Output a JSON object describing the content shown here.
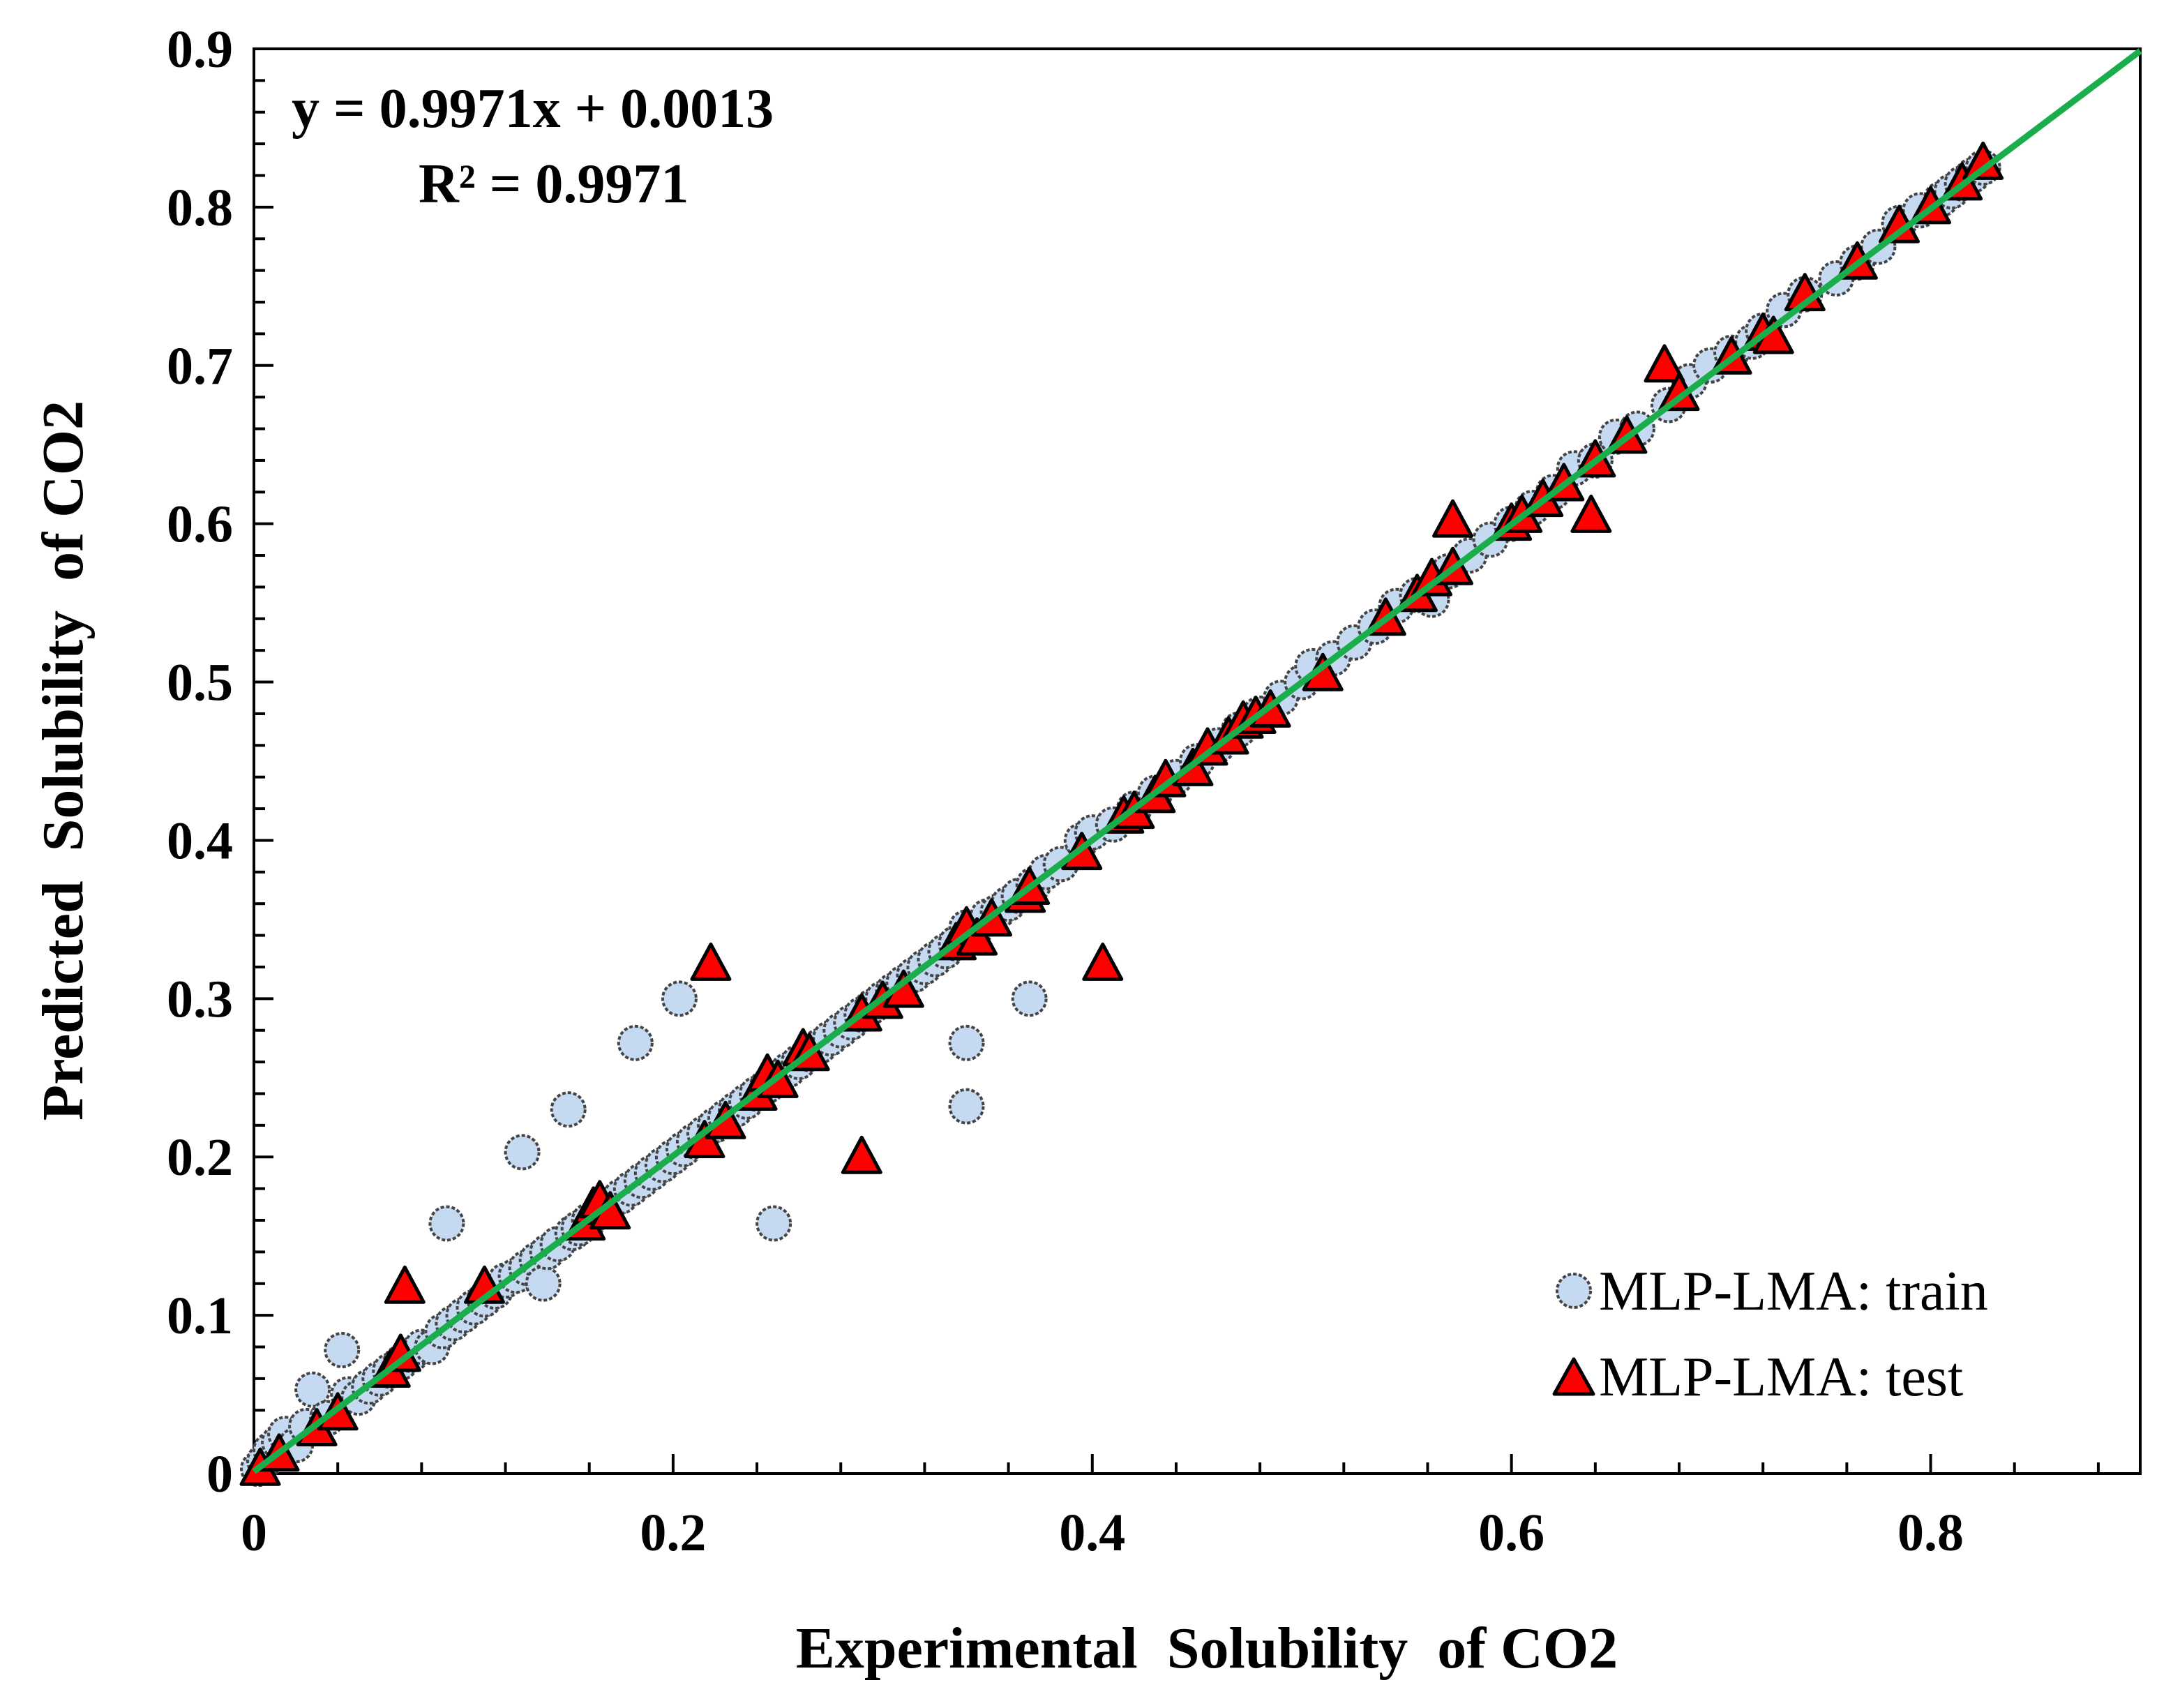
{
  "chart_data": {
    "type": "scatter",
    "xlabel": "Experimental  Solubility  of CO2",
    "ylabel": "Predicted  Solubility  of CO2",
    "xlim": [
      0,
      0.9
    ],
    "ylim": [
      0,
      0.9
    ],
    "x_ticks": [
      "0",
      "0.2",
      "0.4",
      "0.6",
      "0.8"
    ],
    "y_ticks": [
      "0",
      "0.1",
      "0.2",
      "0.3",
      "0.4",
      "0.5",
      "0.6",
      "0.7",
      "0.8",
      "0.9"
    ],
    "equation": "y = 0.9971x + 0.0013",
    "r_squared": "R² = 0.9971",
    "fit_line": {
      "slope": 0.9971,
      "intercept": 0.0013,
      "color": "#1aad4b"
    },
    "legend_position": "bottom-right",
    "series": [
      {
        "name": "MLP-LMA: train",
        "marker": "circle",
        "color": "#c5d9f1",
        "points": [
          [
            0.002,
            0.003
          ],
          [
            0.005,
            0.008
          ],
          [
            0.008,
            0.015
          ],
          [
            0.012,
            0.02
          ],
          [
            0.015,
            0.025
          ],
          [
            0.02,
            0.018
          ],
          [
            0.025,
            0.03
          ],
          [
            0.028,
            0.053
          ],
          [
            0.035,
            0.035
          ],
          [
            0.042,
            0.078
          ],
          [
            0.045,
            0.05
          ],
          [
            0.05,
            0.048
          ],
          [
            0.055,
            0.055
          ],
          [
            0.06,
            0.06
          ],
          [
            0.065,
            0.065
          ],
          [
            0.07,
            0.07
          ],
          [
            0.075,
            0.075
          ],
          [
            0.08,
            0.08
          ],
          [
            0.085,
            0.08
          ],
          [
            0.09,
            0.09
          ],
          [
            0.092,
            0.158
          ],
          [
            0.095,
            0.095
          ],
          [
            0.1,
            0.1
          ],
          [
            0.105,
            0.105
          ],
          [
            0.11,
            0.11
          ],
          [
            0.115,
            0.115
          ],
          [
            0.12,
            0.122
          ],
          [
            0.125,
            0.125
          ],
          [
            0.128,
            0.203
          ],
          [
            0.13,
            0.13
          ],
          [
            0.135,
            0.135
          ],
          [
            0.138,
            0.12
          ],
          [
            0.14,
            0.14
          ],
          [
            0.145,
            0.145
          ],
          [
            0.15,
            0.23
          ],
          [
            0.152,
            0.152
          ],
          [
            0.155,
            0.155
          ],
          [
            0.16,
            0.16
          ],
          [
            0.165,
            0.165
          ],
          [
            0.17,
            0.17
          ],
          [
            0.175,
            0.175
          ],
          [
            0.18,
            0.18
          ],
          [
            0.182,
            0.272
          ],
          [
            0.185,
            0.185
          ],
          [
            0.19,
            0.19
          ],
          [
            0.195,
            0.195
          ],
          [
            0.2,
            0.2
          ],
          [
            0.203,
            0.3
          ],
          [
            0.205,
            0.205
          ],
          [
            0.21,
            0.21
          ],
          [
            0.215,
            0.215
          ],
          [
            0.22,
            0.22
          ],
          [
            0.225,
            0.225
          ],
          [
            0.23,
            0.23
          ],
          [
            0.235,
            0.235
          ],
          [
            0.24,
            0.24
          ],
          [
            0.245,
            0.245
          ],
          [
            0.248,
            0.158
          ],
          [
            0.25,
            0.25
          ],
          [
            0.255,
            0.255
          ],
          [
            0.26,
            0.26
          ],
          [
            0.265,
            0.265
          ],
          [
            0.27,
            0.27
          ],
          [
            0.275,
            0.275
          ],
          [
            0.28,
            0.28
          ],
          [
            0.285,
            0.285
          ],
          [
            0.29,
            0.29
          ],
          [
            0.295,
            0.295
          ],
          [
            0.3,
            0.3
          ],
          [
            0.305,
            0.305
          ],
          [
            0.31,
            0.31
          ],
          [
            0.315,
            0.315
          ],
          [
            0.32,
            0.32
          ],
          [
            0.325,
            0.325
          ],
          [
            0.33,
            0.33
          ],
          [
            0.335,
            0.335
          ],
          [
            0.34,
            0.345
          ],
          [
            0.34,
            0.272
          ],
          [
            0.34,
            0.232
          ],
          [
            0.345,
            0.345
          ],
          [
            0.35,
            0.352
          ],
          [
            0.355,
            0.355
          ],
          [
            0.36,
            0.36
          ],
          [
            0.365,
            0.365
          ],
          [
            0.37,
            0.3
          ],
          [
            0.372,
            0.372
          ],
          [
            0.378,
            0.38
          ],
          [
            0.385,
            0.385
          ],
          [
            0.395,
            0.4
          ],
          [
            0.4,
            0.405
          ],
          [
            0.41,
            0.41
          ],
          [
            0.42,
            0.42
          ],
          [
            0.43,
            0.43
          ],
          [
            0.44,
            0.44
          ],
          [
            0.45,
            0.45
          ],
          [
            0.46,
            0.46
          ],
          [
            0.47,
            0.47
          ],
          [
            0.48,
            0.48
          ],
          [
            0.49,
            0.49
          ],
          [
            0.5,
            0.5
          ],
          [
            0.505,
            0.51
          ],
          [
            0.515,
            0.515
          ],
          [
            0.525,
            0.525
          ],
          [
            0.535,
            0.535
          ],
          [
            0.545,
            0.548
          ],
          [
            0.555,
            0.555
          ],
          [
            0.562,
            0.552
          ],
          [
            0.57,
            0.57
          ],
          [
            0.58,
            0.58
          ],
          [
            0.59,
            0.59
          ],
          [
            0.6,
            0.6
          ],
          [
            0.61,
            0.61
          ],
          [
            0.62,
            0.62
          ],
          [
            0.63,
            0.635
          ],
          [
            0.64,
            0.64
          ],
          [
            0.65,
            0.655
          ],
          [
            0.66,
            0.66
          ],
          [
            0.675,
            0.675
          ],
          [
            0.685,
            0.69
          ],
          [
            0.695,
            0.7
          ],
          [
            0.705,
            0.708
          ],
          [
            0.715,
            0.715
          ],
          [
            0.72,
            0.722
          ],
          [
            0.73,
            0.735
          ],
          [
            0.74,
            0.745
          ],
          [
            0.755,
            0.755
          ],
          [
            0.765,
            0.765
          ],
          [
            0.775,
            0.775
          ],
          [
            0.785,
            0.79
          ],
          [
            0.795,
            0.798
          ],
          [
            0.805,
            0.805
          ],
          [
            0.81,
            0.81
          ],
          [
            0.815,
            0.815
          ],
          [
            0.82,
            0.82
          ],
          [
            0.825,
            0.825
          ]
        ]
      },
      {
        "name": "MLP-LMA: test",
        "marker": "triangle",
        "color": "#ff0000",
        "points": [
          [
            0.003,
            0.003
          ],
          [
            0.012,
            0.012
          ],
          [
            0.03,
            0.028
          ],
          [
            0.04,
            0.038
          ],
          [
            0.065,
            0.065
          ],
          [
            0.07,
            0.075
          ],
          [
            0.072,
            0.118
          ],
          [
            0.11,
            0.118
          ],
          [
            0.158,
            0.158
          ],
          [
            0.162,
            0.168
          ],
          [
            0.165,
            0.172
          ],
          [
            0.17,
            0.165
          ],
          [
            0.215,
            0.21
          ],
          [
            0.218,
            0.322
          ],
          [
            0.225,
            0.222
          ],
          [
            0.24,
            0.24
          ],
          [
            0.245,
            0.252
          ],
          [
            0.25,
            0.248
          ],
          [
            0.262,
            0.268
          ],
          [
            0.265,
            0.265
          ],
          [
            0.29,
            0.29
          ],
          [
            0.29,
            0.2
          ],
          [
            0.3,
            0.298
          ],
          [
            0.31,
            0.305
          ],
          [
            0.335,
            0.335
          ],
          [
            0.34,
            0.345
          ],
          [
            0.345,
            0.338
          ],
          [
            0.352,
            0.35
          ],
          [
            0.368,
            0.365
          ],
          [
            0.37,
            0.37
          ],
          [
            0.395,
            0.392
          ],
          [
            0.405,
            0.322
          ],
          [
            0.415,
            0.415
          ],
          [
            0.42,
            0.418
          ],
          [
            0.43,
            0.428
          ],
          [
            0.435,
            0.438
          ],
          [
            0.448,
            0.445
          ],
          [
            0.455,
            0.458
          ],
          [
            0.465,
            0.465
          ],
          [
            0.472,
            0.475
          ],
          [
            0.478,
            0.478
          ],
          [
            0.485,
            0.482
          ],
          [
            0.51,
            0.505
          ],
          [
            0.54,
            0.54
          ],
          [
            0.555,
            0.555
          ],
          [
            0.562,
            0.565
          ],
          [
            0.572,
            0.572
          ],
          [
            0.572,
            0.602
          ],
          [
            0.6,
            0.6
          ],
          [
            0.605,
            0.605
          ],
          [
            0.615,
            0.615
          ],
          [
            0.625,
            0.625
          ],
          [
            0.638,
            0.605
          ],
          [
            0.64,
            0.64
          ],
          [
            0.655,
            0.655
          ],
          [
            0.673,
            0.7
          ],
          [
            0.68,
            0.682
          ],
          [
            0.705,
            0.705
          ],
          [
            0.72,
            0.72
          ],
          [
            0.725,
            0.718
          ],
          [
            0.74,
            0.745
          ],
          [
            0.765,
            0.765
          ],
          [
            0.785,
            0.788
          ],
          [
            0.8,
            0.8
          ],
          [
            0.815,
            0.815
          ],
          [
            0.825,
            0.828
          ]
        ]
      }
    ]
  }
}
